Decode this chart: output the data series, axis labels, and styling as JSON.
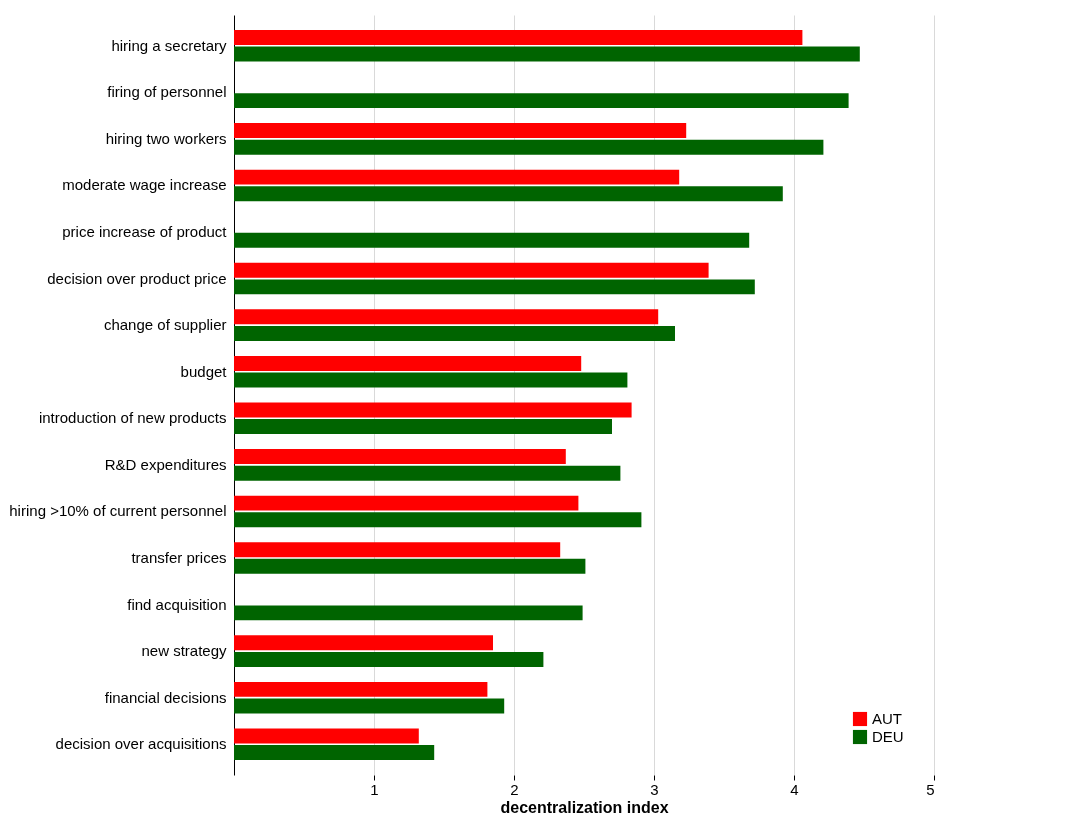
{
  "chart_data": {
    "type": "bar",
    "orientation": "horizontal",
    "xlabel": "decentralization index",
    "categories": [
      "hiring a secretary",
      "firing of personnel",
      "hiring two workers",
      "moderate wage increase",
      "price increase of product",
      "decision over product price",
      "change of supplier",
      "budget",
      "introduction of new products",
      "R&D expenditures",
      "hiring >10% of current personnel",
      "transfer prices",
      "find acquisition",
      "new strategy",
      "financial decisions",
      "decision over acquisitions"
    ],
    "series": [
      {
        "name": "AUT",
        "color": "#ff0000",
        "values": [
          4.06,
          null,
          3.23,
          3.18,
          null,
          3.39,
          3.03,
          2.48,
          2.84,
          2.37,
          2.46,
          2.33,
          null,
          1.85,
          1.81,
          1.32
        ]
      },
      {
        "name": "DEU",
        "color": "#006400",
        "values": [
          4.47,
          4.39,
          4.21,
          3.92,
          3.68,
          3.72,
          3.15,
          2.81,
          2.7,
          2.76,
          2.91,
          2.51,
          2.49,
          2.21,
          1.93,
          1.43
        ]
      }
    ],
    "xlim": [
      0,
      5
    ],
    "xticks": [
      1,
      2,
      3,
      4,
      5
    ],
    "grid": "x",
    "legend": "bottom right"
  }
}
